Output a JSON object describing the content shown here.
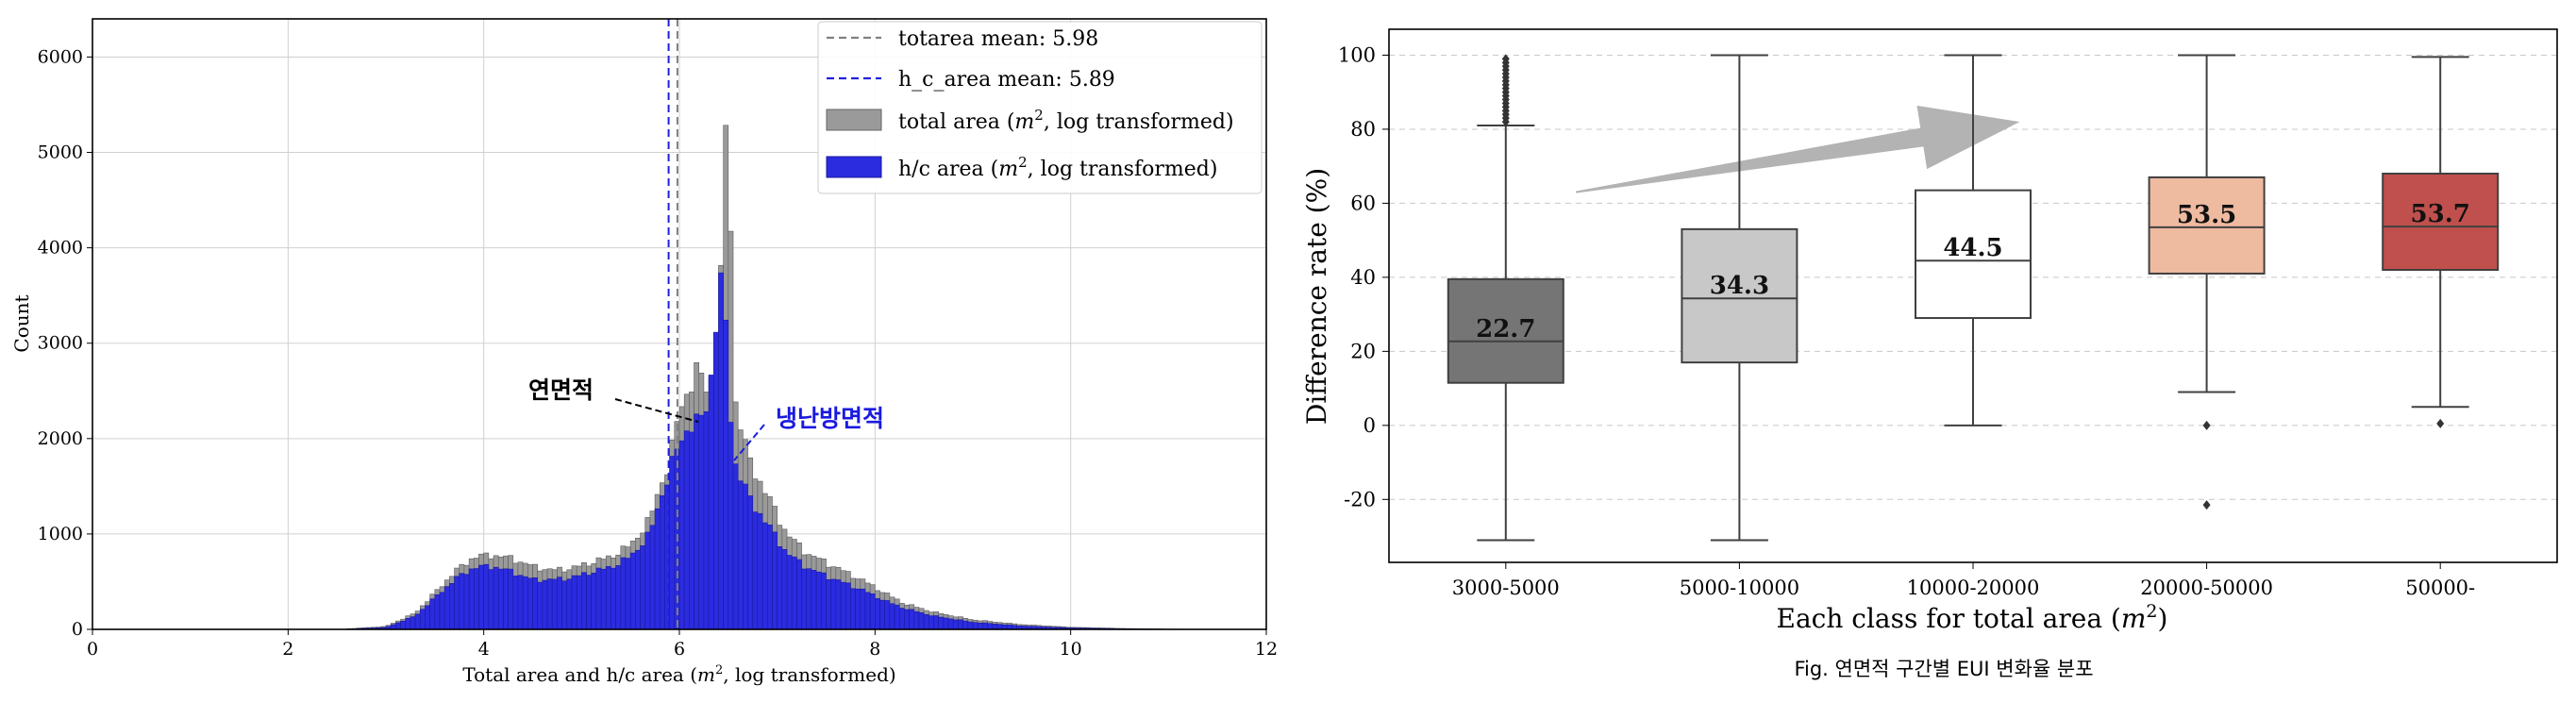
{
  "colors": {
    "total_bar": "#9a9a9a",
    "hc_bar": "#2b2be0",
    "mean_total_line": "#808080",
    "mean_hc_line": "#2020e0",
    "arrow": "#b3b3b3",
    "box_fills": [
      "#757575",
      "#c8c8c8",
      "#ffffff",
      "#eebaa0",
      "#c0504d"
    ]
  },
  "chart_data": [
    {
      "type": "histogram",
      "xlabel_prefix": "Total area and h/c area (",
      "xlabel_unit": "m",
      "xlabel_sup": "2",
      "xlabel_suffix": ", log transformed)",
      "ylabel": "Count",
      "xlim": [
        0,
        12
      ],
      "ylim": [
        0,
        6400
      ],
      "xticks": [
        0,
        2,
        4,
        6,
        8,
        10,
        12
      ],
      "yticks": [
        0,
        1000,
        2000,
        3000,
        4000,
        5000,
        6000
      ],
      "grid": true,
      "legend_position": "top-right",
      "legend": [
        {
          "kind": "line",
          "style": "dashed",
          "color": "#808080",
          "label": "totarea mean: 5.98"
        },
        {
          "kind": "line",
          "style": "dashed",
          "color": "#2020e0",
          "label": "h_c_area mean: 5.89"
        },
        {
          "kind": "patch",
          "color": "#9a9a9a",
          "label_prefix": "total area (",
          "label_unit": "m",
          "label_sup": "2",
          "label_suffix": ", log transformed)"
        },
        {
          "kind": "patch",
          "color": "#2b2be0",
          "label_prefix": "h/c area (",
          "label_unit": "m",
          "label_sup": "2",
          "label_suffix": ", log transformed)"
        }
      ],
      "means": {
        "totarea": 5.98,
        "h_c_area": 5.89
      },
      "annotations": [
        {
          "text": "연면적",
          "color": "#000000",
          "points_to_x": 6.25
        },
        {
          "text": "냉난방면적",
          "color": "#1a1ae0",
          "points_to_x": 6.5
        }
      ],
      "series": [
        {
          "name": "total area",
          "anchors": [
            [
              2.6,
              5
            ],
            [
              3.0,
              30
            ],
            [
              3.3,
              170
            ],
            [
              3.5,
              380
            ],
            [
              3.7,
              600
            ],
            [
              3.9,
              760
            ],
            [
              4.1,
              780
            ],
            [
              4.3,
              740
            ],
            [
              4.5,
              660
            ],
            [
              4.7,
              620
            ],
            [
              4.9,
              640
            ],
            [
              5.1,
              700
            ],
            [
              5.3,
              760
            ],
            [
              5.5,
              880
            ],
            [
              5.7,
              1150
            ],
            [
              5.8,
              1500
            ],
            [
              5.9,
              1750
            ],
            [
              6.0,
              2300
            ],
            [
              6.1,
              2550
            ],
            [
              6.2,
              2700
            ],
            [
              6.3,
              2500
            ],
            [
              6.4,
              3100
            ],
            [
              6.45,
              4200
            ],
            [
              6.5,
              6150
            ],
            [
              6.55,
              2500
            ],
            [
              6.7,
              1800
            ],
            [
              6.9,
              1400
            ],
            [
              7.1,
              1000
            ],
            [
              7.3,
              800
            ],
            [
              7.5,
              700
            ],
            [
              7.7,
              600
            ],
            [
              7.9,
              500
            ],
            [
              8.1,
              380
            ],
            [
              8.3,
              270
            ],
            [
              8.6,
              180
            ],
            [
              9.0,
              100
            ],
            [
              9.5,
              50
            ],
            [
              10.0,
              22
            ],
            [
              10.6,
              8
            ],
            [
              11.0,
              3
            ],
            [
              11.5,
              0
            ]
          ]
        },
        {
          "name": "h/c area",
          "anchors": [
            [
              2.6,
              3
            ],
            [
              3.0,
              20
            ],
            [
              3.3,
              140
            ],
            [
              3.5,
              330
            ],
            [
              3.7,
              520
            ],
            [
              3.9,
              650
            ],
            [
              4.1,
              660
            ],
            [
              4.3,
              600
            ],
            [
              4.5,
              520
            ],
            [
              4.7,
              520
            ],
            [
              4.9,
              540
            ],
            [
              5.1,
              600
            ],
            [
              5.3,
              650
            ],
            [
              5.5,
              760
            ],
            [
              5.7,
              1000
            ],
            [
              5.8,
              1350
            ],
            [
              5.9,
              1650
            ],
            [
              6.0,
              1950
            ],
            [
              6.1,
              2150
            ],
            [
              6.2,
              2150
            ],
            [
              6.3,
              2400
            ],
            [
              6.4,
              3500
            ],
            [
              6.45,
              3650
            ],
            [
              6.5,
              2700
            ],
            [
              6.55,
              1800
            ],
            [
              6.7,
              1400
            ],
            [
              6.9,
              1100
            ],
            [
              7.1,
              800
            ],
            [
              7.3,
              650
            ],
            [
              7.5,
              560
            ],
            [
              7.7,
              480
            ],
            [
              7.9,
              400
            ],
            [
              8.1,
              300
            ],
            [
              8.3,
              220
            ],
            [
              8.6,
              140
            ],
            [
              9.0,
              75
            ],
            [
              9.5,
              35
            ],
            [
              10.0,
              15
            ],
            [
              10.6,
              5
            ],
            [
              11.0,
              2
            ],
            [
              11.5,
              0
            ]
          ]
        }
      ]
    },
    {
      "type": "box",
      "xlabel_prefix": "Each class for total area (",
      "xlabel_unit": "m",
      "xlabel_sup": "2",
      "xlabel_suffix": ")",
      "ylabel": "Difference rate (%)",
      "ylim": [
        -37,
        107
      ],
      "yticks": [
        -20,
        0,
        20,
        40,
        60,
        80,
        100
      ],
      "grid": "horizontal dashed",
      "categories": [
        "3000-5000",
        "5000-10000",
        "10000-20000",
        "20000-50000",
        "50000-"
      ],
      "boxes": [
        {
          "whisker_low": -31,
          "q1": 11.5,
          "median": 22.7,
          "q3": 39.5,
          "whisker_high": 81,
          "outliers": [
            82,
            83,
            84,
            85,
            86,
            87,
            88,
            89,
            90,
            91,
            92,
            93,
            94,
            95,
            96,
            97,
            98,
            99
          ],
          "label": "22.7"
        },
        {
          "whisker_low": -31,
          "q1": 17,
          "median": 34.3,
          "q3": 53,
          "whisker_high": 100,
          "outliers": [],
          "label": "34.3"
        },
        {
          "whisker_low": 0,
          "q1": 29,
          "median": 44.5,
          "q3": 63.5,
          "whisker_high": 100,
          "outliers": [],
          "label": "44.5"
        },
        {
          "whisker_low": 9,
          "q1": 41,
          "median": 53.5,
          "q3": 67,
          "whisker_high": 100,
          "outliers": [
            0,
            -21.5
          ],
          "label": "53.5"
        },
        {
          "whisker_low": 5,
          "q1": 42,
          "median": 53.7,
          "q3": 68,
          "whisker_high": 99.5,
          "outliers": [
            0.5
          ],
          "label": "53.7"
        }
      ],
      "trend_arrow": {
        "from": [
          0.3,
          63
        ],
        "to": [
          2.2,
          82
        ]
      }
    }
  ],
  "caption": "Fig. 연면적 구간별 EUI 변화율 분포"
}
